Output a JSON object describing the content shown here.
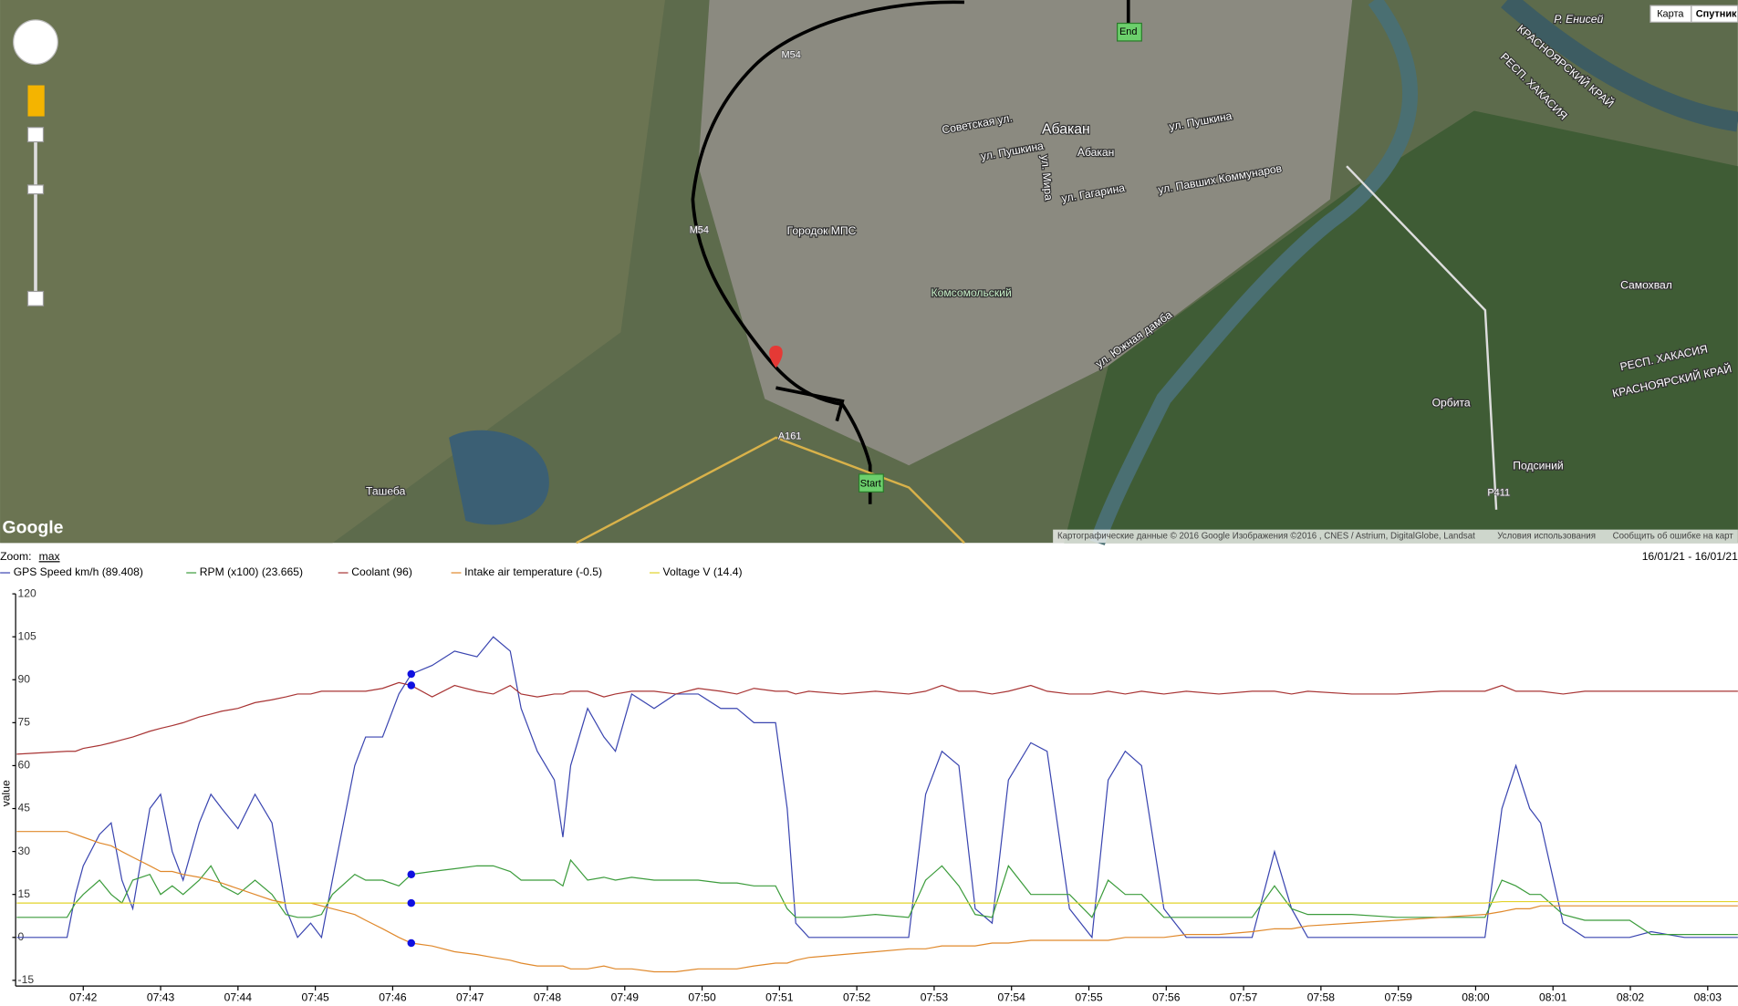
{
  "map": {
    "labels": [
      "Абакан",
      "Советская ул.",
      "ул. Пушкина",
      "ул. Пушкина",
      "Абакан",
      "ул. Гагарина",
      "ул. Павших Коммунаров",
      "Городок МПС",
      "Комсомольский",
      "Ташеба",
      "Самохвал",
      "Орбита",
      "Подсиний",
      "Р. Енисей",
      "КРАСНОЯРСКИЙ КРАЙ",
      "РЕСП. ХАКАСИЯ",
      "РЕСП. ХАКАСИЯ",
      "КРАСНОЯРСКИЙ КРАЙ",
      "ул. Южная дамба",
      "ул. Мира",
      "Start",
      "End",
      "A161",
      "M54",
      "M54",
      "P411"
    ],
    "buttons": [
      "Карта",
      "Спутник"
    ],
    "logo": "Google",
    "footer": [
      "Картографические данные © 2016 Google Изображения ©2016 , CNES / Astrium, DigitalGlobe, Landsat",
      "Условия использования",
      "Сообщить об ошибке на карт"
    ]
  },
  "zoom": {
    "label": "Zoom:",
    "link": "max"
  },
  "date_range": "16/01/21 - 16/01/21",
  "chart_data": {
    "type": "line",
    "ylabel": "value",
    "x": [
      461.14,
      461.79,
      461.9,
      462,
      462.21,
      462.36,
      462.5,
      462.64,
      462.86,
      463.0,
      463.15,
      463.29,
      463.5,
      463.65,
      463.79,
      464.0,
      464.22,
      464.44,
      464.62,
      464.77,
      464.94,
      465.08,
      465.22,
      465.51,
      465.65,
      465.87,
      466.08,
      466.24,
      466.51,
      466.8,
      467.09,
      467.3,
      467.52,
      467.66,
      467.87,
      468.09,
      468.2,
      468.3,
      468.52,
      468.73,
      468.88,
      469.09,
      469.38,
      469.66,
      469.95,
      470.24,
      470.45,
      470.67,
      470.95,
      471.1,
      471.21,
      471.38,
      471.81,
      472.24,
      472.67,
      472.89,
      473.1,
      473.32,
      473.53,
      473.75,
      473.96,
      474.25,
      474.46,
      474.75,
      475.04,
      475.25,
      475.47,
      475.68,
      475.97,
      476.26,
      476.68,
      477.11,
      477.4,
      477.62,
      477.83,
      478.4,
      478.98,
      479.55,
      480.12,
      480.34,
      480.52,
      480.7,
      480.84,
      481.13,
      481.41,
      481.99,
      482.27,
      482.7,
      483.39
    ],
    "series": [
      {
        "name": "GPS Speed km/h (89.408)",
        "color": "#3a45b0",
        "values": [
          0,
          0,
          15,
          25,
          36,
          40,
          20,
          10,
          45,
          50,
          30,
          20,
          40,
          50,
          45,
          38,
          50,
          40,
          10,
          0,
          5,
          0,
          20,
          60,
          70,
          70,
          85,
          92,
          95,
          100,
          98,
          105,
          100,
          80,
          65,
          55,
          35,
          60,
          80,
          70,
          65,
          85,
          80,
          85,
          85,
          80,
          80,
          75,
          75,
          45,
          5,
          0,
          0,
          0,
          0,
          50,
          65,
          60,
          10,
          5,
          55,
          68,
          65,
          10,
          0,
          55,
          65,
          60,
          10,
          0,
          0,
          0,
          30,
          10,
          0,
          0,
          0,
          0,
          0,
          45,
          60,
          45,
          40,
          5,
          0,
          0,
          2,
          0,
          0
        ]
      },
      {
        "name": "RPM (x100) (23.665)",
        "color": "#3c9c3c",
        "values": [
          7,
          7,
          12,
          15,
          20,
          15,
          12,
          20,
          22,
          15,
          18,
          15,
          20,
          25,
          18,
          15,
          20,
          15,
          8,
          7,
          7,
          8,
          15,
          22,
          20,
          20,
          18,
          22,
          23,
          24,
          25,
          25,
          23,
          20,
          20,
          20,
          18,
          27,
          20,
          21,
          20,
          21,
          20,
          20,
          20,
          19,
          19,
          18,
          18,
          10,
          7,
          7,
          7,
          8,
          7,
          20,
          25,
          18,
          8,
          7,
          25,
          15,
          15,
          15,
          7,
          20,
          15,
          15,
          7,
          7,
          7,
          7,
          18,
          10,
          8,
          8,
          7,
          7,
          7,
          20,
          18,
          15,
          15,
          8,
          6,
          6,
          1,
          1,
          1
        ]
      },
      {
        "name": "Coolant (96)",
        "color": "#a83434",
        "values": [
          64,
          65,
          65,
          66,
          67,
          68,
          69,
          70,
          72,
          73,
          74,
          75,
          77,
          78,
          79,
          80,
          82,
          83,
          84,
          85,
          85,
          86,
          86,
          86,
          86,
          87,
          89,
          88,
          84,
          88,
          86,
          85,
          88,
          85,
          84,
          85,
          85,
          86,
          86,
          84,
          85,
          86,
          86,
          85,
          87,
          86,
          85,
          87,
          86,
          86,
          85,
          86,
          85,
          86,
          85,
          86,
          88,
          86,
          86,
          85,
          86,
          88,
          86,
          85,
          85,
          86,
          85,
          86,
          85,
          86,
          85,
          86,
          86,
          85,
          86,
          85,
          85,
          86,
          86,
          88,
          86,
          86,
          86,
          85,
          86,
          86,
          86,
          86,
          86
        ]
      },
      {
        "name": "Intake air temperature (-0.5)",
        "color": "#e0892c",
        "values": [
          37,
          37,
          36,
          35,
          33,
          32,
          30,
          28,
          25,
          23,
          23,
          22,
          21,
          20,
          19,
          17,
          15,
          13,
          12,
          12,
          12,
          11,
          10,
          8,
          6,
          3,
          0,
          -2,
          -3,
          -5,
          -6,
          -7,
          -8,
          -9,
          -10,
          -10,
          -10,
          -11,
          -11,
          -10,
          -11,
          -11,
          -12,
          -12,
          -11,
          -11,
          -11,
          -10,
          -9,
          -9,
          -8,
          -7,
          -6,
          -5,
          -4,
          -4,
          -3,
          -3,
          -3,
          -2,
          -2,
          -1,
          -1,
          -1,
          -1,
          -1,
          0,
          0,
          0,
          1,
          1,
          2,
          3,
          3,
          4,
          5,
          6,
          7,
          8,
          9,
          10,
          10,
          11,
          11,
          11,
          11,
          11,
          11,
          11
        ]
      },
      {
        "name": "Voltage V (14.4)",
        "color": "#e2d32a",
        "values": [
          12,
          12,
          12,
          12,
          12,
          12,
          12,
          12,
          12,
          12,
          12,
          12,
          12,
          12,
          12,
          12,
          12,
          12,
          12,
          12,
          12,
          12,
          12,
          12,
          12,
          12,
          12,
          12,
          12,
          12,
          12,
          12,
          12,
          12,
          12,
          12,
          12,
          12,
          12,
          12,
          12,
          12,
          12,
          12,
          12,
          12,
          12,
          12,
          12,
          12,
          12,
          12,
          12,
          12,
          12,
          12,
          12,
          12,
          12,
          12,
          12,
          12,
          12,
          12,
          12,
          12,
          12,
          12,
          12,
          12,
          12,
          12,
          12,
          12,
          12,
          12,
          12,
          12,
          12,
          12.5,
          12.5,
          12.5,
          12.5,
          12.5,
          12.5,
          12.5,
          12.5,
          12.5,
          12.5
        ]
      }
    ],
    "xlim": [
      461.14,
      483.39
    ],
    "ylim": [
      -17,
      120
    ],
    "yticks": [
      -15,
      0,
      15,
      30,
      45,
      60,
      75,
      90,
      105,
      120
    ],
    "xticks": [
      {
        "value": 462,
        "label": "07:42"
      },
      {
        "value": 463,
        "label": "07:43"
      },
      {
        "value": 464,
        "label": "07:44"
      },
      {
        "value": 465,
        "label": "07:45"
      },
      {
        "value": 466,
        "label": "07:46"
      },
      {
        "value": 467,
        "label": "07:47"
      },
      {
        "value": 468,
        "label": "07:48"
      },
      {
        "value": 469,
        "label": "07:49"
      },
      {
        "value": 470,
        "label": "07:50"
      },
      {
        "value": 471,
        "label": "07:51"
      },
      {
        "value": 472,
        "label": "07:52"
      },
      {
        "value": 473,
        "label": "07:53"
      },
      {
        "value": 474,
        "label": "07:54"
      },
      {
        "value": 475,
        "label": "07:55"
      },
      {
        "value": 476,
        "label": "07:56"
      },
      {
        "value": 477,
        "label": "07:57"
      },
      {
        "value": 478,
        "label": "07:58"
      },
      {
        "value": 479,
        "label": "07:59"
      },
      {
        "value": 480,
        "label": "08:00"
      },
      {
        "value": 481,
        "label": "08:01"
      },
      {
        "value": 482,
        "label": "08:02"
      },
      {
        "value": 483,
        "label": "08:03"
      }
    ]
  }
}
